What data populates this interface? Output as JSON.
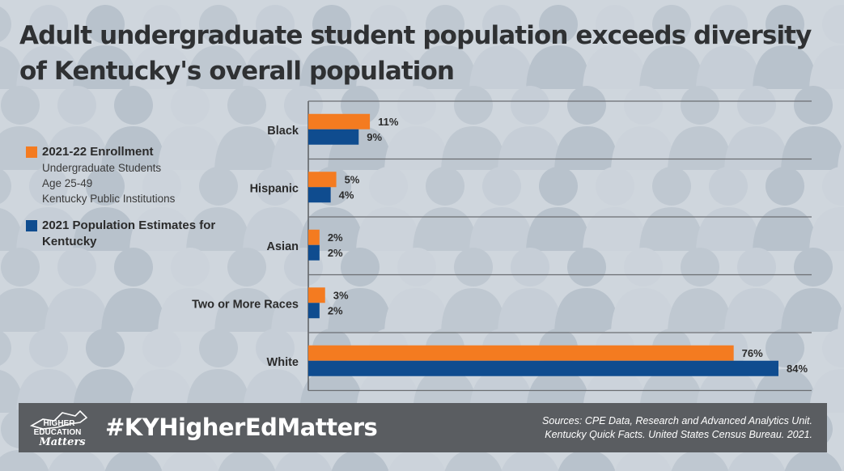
{
  "title": "Adult undergraduate student population exceeds diversity of Kentucky's overall population",
  "legend": [
    {
      "label": "2021-22 Enrollment",
      "sub": [
        "Undergraduate Students",
        "Age 25-49",
        "Kentucky Public Institutions"
      ],
      "color": "#f47b20"
    },
    {
      "label": "2021 Population Estimates for Kentucky",
      "sub": [],
      "color": "#0f4c8f"
    }
  ],
  "chart_data": {
    "type": "bar",
    "orientation": "horizontal",
    "categories": [
      "Black",
      "Hispanic",
      "Asian",
      "Two or More Races",
      "White"
    ],
    "series": [
      {
        "name": "2021-22 Enrollment",
        "values": [
          11,
          5,
          2,
          3,
          76
        ],
        "color": "#f47b20"
      },
      {
        "name": "2021 Population Estimates for Kentucky",
        "values": [
          9,
          4,
          2,
          2,
          84
        ],
        "color": "#0f4c8f"
      }
    ],
    "value_suffix": "%",
    "xlim": [
      0,
      84
    ],
    "grid": true,
    "legend_position": "left"
  },
  "footer": {
    "hashtag": "#KYHigherEdMatters",
    "logo_text": [
      "HIGHER",
      "EDUCATION",
      "Matters"
    ],
    "sources": [
      "Sources: CPE Data, Research and Advanced Analytics Unit.",
      "Kentucky Quick Facts. United States Census Bureau. 2021."
    ]
  }
}
